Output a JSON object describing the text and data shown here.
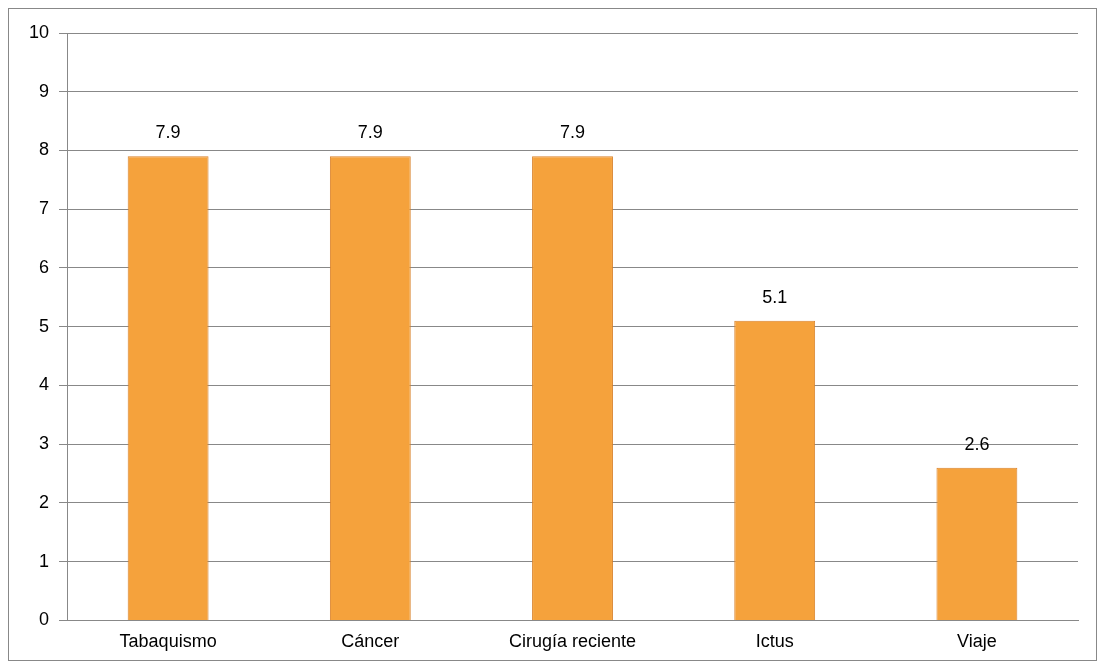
{
  "chart_data": {
    "type": "bar",
    "categories": [
      "Tabaquismo",
      "Cáncer",
      "Cirugía reciente",
      "Ictus",
      "Viaje"
    ],
    "values": [
      7.9,
      7.9,
      7.9,
      5.1,
      2.6
    ],
    "color": "#f5a23c",
    "ylim": [
      0,
      10
    ],
    "yticks": [
      0,
      1,
      2,
      3,
      4,
      5,
      6,
      7,
      8,
      9,
      10
    ],
    "grid": "y",
    "data_labels": true,
    "legend": false
  }
}
